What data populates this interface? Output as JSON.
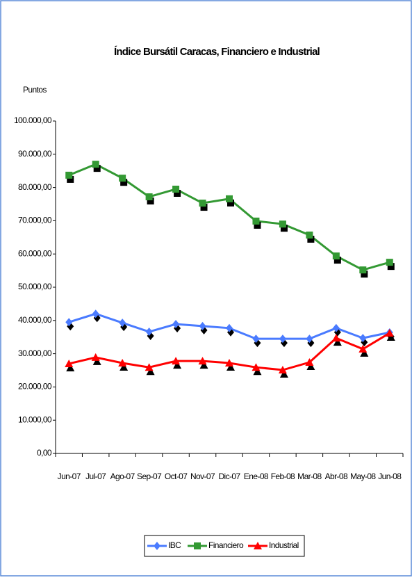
{
  "chart_data": {
    "type": "line",
    "title": "Índice Bursátil Caracas, Financiero e Industrial",
    "y_label": "Puntos",
    "categories": [
      "Jun-07",
      "Jul-07",
      "Ago-07",
      "Sep-07",
      "Oct-07",
      "Nov-07",
      "Dic-07",
      "Ene-08",
      "Feb-08",
      "Mar-08",
      "Abr-08",
      "May-08",
      "Jun-08"
    ],
    "series": [
      {
        "name": "IBC",
        "color": "#4a7bff",
        "marker": "diamond",
        "values": [
          39500,
          42000,
          39300,
          36600,
          38900,
          38300,
          37700,
          34500,
          34500,
          34500,
          37700,
          34700,
          36400
        ]
      },
      {
        "name": "Financiero",
        "color": "#339933",
        "marker": "square",
        "values": [
          83700,
          87000,
          82800,
          77200,
          79500,
          75300,
          76600,
          69900,
          69000,
          65700,
          59400,
          55200,
          57500
        ]
      },
      {
        "name": "Industrial",
        "color": "#ff0000",
        "marker": "triangle",
        "values": [
          27000,
          28900,
          27200,
          25900,
          27800,
          27800,
          27200,
          25900,
          25100,
          27400,
          34700,
          31400,
          36200
        ]
      }
    ],
    "ylim": [
      0,
      100000
    ],
    "yticks": [
      {
        "value": 0,
        "label": "0,00"
      },
      {
        "value": 10000,
        "label": "10.000,00"
      },
      {
        "value": 20000,
        "label": "20.000,00"
      },
      {
        "value": 30000,
        "label": "30.000,00"
      },
      {
        "value": 40000,
        "label": "40.000,00"
      },
      {
        "value": 50000,
        "label": "50.000,00"
      },
      {
        "value": 60000,
        "label": "60.000,00"
      },
      {
        "value": 70000,
        "label": "70.000,00"
      },
      {
        "value": 80000,
        "label": "80.000,00"
      },
      {
        "value": 90000,
        "label": "90.000,00"
      },
      {
        "value": 100000,
        "label": "100.000,00"
      }
    ],
    "grid": false,
    "legend": "bottom"
  }
}
